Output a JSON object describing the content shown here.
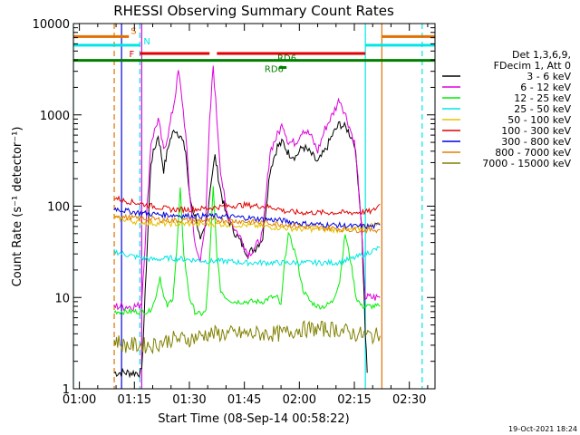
{
  "chart_data": {
    "type": "line",
    "title": "RHESSI Observing Summary Count Rates",
    "xlabel": "Start Time (08-Sep-14 00:58:22)",
    "ylabel": "Count Rate (s⁻¹ detector⁻¹)",
    "xlim": [
      "00:58:22",
      "02:37:00"
    ],
    "ylim": [
      1,
      10000
    ],
    "yscale": "log",
    "x_ticks": [
      "01:00",
      "01:15",
      "01:30",
      "01:45",
      "02:00",
      "02:15",
      "02:30"
    ],
    "y_ticks": [
      "1",
      "10",
      "100",
      "1000",
      "10000"
    ],
    "footer_date": "19-Oct-2021 18:24",
    "legend": {
      "header": [
        "Det 1,3,6,9,",
        "FDecim 1, Att 0"
      ],
      "entries": [
        {
          "label": "3 - 6 keV",
          "color": "#000000"
        },
        {
          "label": "6 - 12 keV",
          "color": "#dd00dd"
        },
        {
          "label": "12 - 25 keV",
          "color": "#00ee00"
        },
        {
          "label": "25 - 50 keV",
          "color": "#00e5e5"
        },
        {
          "label": "50 - 100 keV",
          "color": "#e5c000"
        },
        {
          "label": "100 - 300 keV",
          "color": "#e00000"
        },
        {
          "label": "300 - 800 keV",
          "color": "#0000e0"
        },
        {
          "label": "800 - 7000 keV",
          "color": "#e08000"
        },
        {
          "label": "7000 - 15000 keV",
          "color": "#808000"
        }
      ]
    },
    "flag_bars": [
      {
        "label": "S",
        "color": "#e07000",
        "level": 7200,
        "segments": [
          [
            "00:58:22",
            "01:13:30"
          ],
          [
            "02:22:30",
            "02:37:00"
          ]
        ]
      },
      {
        "label": "N",
        "color": "#00e5e5",
        "level": 5800,
        "segments": [
          [
            "00:58:22",
            "01:16:30"
          ],
          [
            "02:18:00",
            "02:37:00"
          ]
        ]
      },
      {
        "label": "F",
        "color": "#e00000",
        "level": 4700,
        "segments": [
          [
            "01:16:30",
            "01:35:30"
          ],
          [
            "01:37:30",
            "02:18:00"
          ]
        ]
      },
      {
        "label": "RD6",
        "color": "#008000",
        "level": 3950,
        "segments": [
          [
            "00:58:22",
            "02:37:00"
          ]
        ]
      },
      {
        "label": "RD6",
        "color": "#008000",
        "level": 3300,
        "segments": [
          [
            "01:54:30",
            "01:56:30"
          ]
        ]
      }
    ],
    "vertical_markers": [
      {
        "time": "00:58:22",
        "color": "#00e5e5",
        "style": "solid"
      },
      {
        "time": "01:09:30",
        "color": "#e07000",
        "style": "dashed"
      },
      {
        "time": "01:11:30",
        "color": "#0000e0",
        "style": "solid"
      },
      {
        "time": "01:16:30",
        "color": "#00e5e5",
        "style": "dashed"
      },
      {
        "time": "01:17:00",
        "color": "#dd00dd",
        "style": "solid"
      },
      {
        "time": "02:18:00",
        "color": "#00e5e5",
        "style": "solid"
      },
      {
        "time": "02:22:30",
        "color": "#e07000",
        "style": "solid"
      },
      {
        "time": "02:33:30",
        "color": "#00e5e5",
        "style": "dashed"
      }
    ],
    "series": [
      {
        "name": "3 - 6 keV",
        "color": "#000000",
        "x": [
          "01:09:30",
          "01:16:00",
          "01:17:00",
          "01:19:30",
          "01:21:30",
          "01:23:00",
          "01:24:30",
          "01:26:00",
          "01:27:30",
          "01:29:00",
          "01:30:00",
          "01:31:00",
          "01:32:00",
          "01:33:00",
          "01:34:30",
          "01:36:00",
          "01:37:00",
          "01:38:30",
          "01:40:00",
          "01:42:00",
          "01:44:00",
          "01:46:00",
          "01:48:00",
          "01:50:00",
          "01:52:00",
          "01:54:00",
          "01:55:30",
          "01:57:00",
          "01:59:00",
          "02:01:00",
          "02:03:00",
          "02:05:00",
          "02:07:00",
          "02:09:00",
          "02:11:00",
          "02:13:00",
          "02:15:00",
          "02:16:00",
          "02:17:00",
          "02:18:00",
          "02:18:30"
        ],
        "values": [
          1.5,
          1.5,
          1.5,
          300,
          600,
          250,
          500,
          700,
          600,
          400,
          130,
          90,
          70,
          40,
          60,
          200,
          350,
          150,
          80,
          55,
          40,
          30,
          35,
          45,
          250,
          450,
          500,
          380,
          350,
          450,
          380,
          300,
          400,
          600,
          800,
          700,
          500,
          200,
          60,
          4,
          1.5
        ]
      },
      {
        "name": "6 - 12 keV",
        "color": "#dd00dd",
        "x": [
          "01:09:30",
          "01:16:00",
          "01:17:00",
          "01:19:30",
          "01:21:30",
          "01:23:00",
          "01:24:30",
          "01:26:00",
          "01:27:00",
          "01:28:00",
          "01:29:00",
          "01:30:00",
          "01:31:00",
          "01:32:00",
          "01:33:00",
          "01:34:30",
          "01:35:30",
          "01:36:30",
          "01:37:30",
          "01:38:30",
          "01:40:00",
          "01:42:00",
          "01:44:00",
          "01:46:00",
          "01:48:00",
          "01:50:00",
          "01:52:00",
          "01:54:00",
          "01:55:30",
          "01:57:00",
          "01:59:00",
          "02:01:00",
          "02:03:00",
          "02:05:00",
          "02:07:00",
          "02:09:00",
          "02:11:00",
          "02:13:00",
          "02:15:00",
          "02:16:00",
          "02:17:00",
          "02:18:00",
          "02:22:00"
        ],
        "values": [
          8,
          8,
          9,
          500,
          900,
          400,
          700,
          1500,
          3000,
          1500,
          600,
          150,
          60,
          30,
          25,
          80,
          800,
          3500,
          900,
          250,
          90,
          60,
          45,
          30,
          35,
          50,
          400,
          600,
          800,
          500,
          500,
          700,
          600,
          400,
          700,
          1000,
          1500,
          900,
          500,
          200,
          50,
          10,
          10
        ]
      },
      {
        "name": "12 - 25 keV",
        "color": "#00ee00",
        "x": [
          "01:09:30",
          "01:15:00",
          "01:17:00",
          "01:19:00",
          "01:20:30",
          "01:22:00",
          "01:23:00",
          "01:24:00",
          "01:25:30",
          "01:26:30",
          "01:27:30",
          "01:28:30",
          "01:30:00",
          "01:31:30",
          "01:33:00",
          "01:34:30",
          "01:35:30",
          "01:36:30",
          "01:37:30",
          "01:38:30",
          "01:40:00",
          "01:42:00",
          "01:44:00",
          "01:46:00",
          "01:48:00",
          "01:50:00",
          "01:52:00",
          "01:54:00",
          "01:55:00",
          "01:56:00",
          "01:57:00",
          "01:59:00",
          "02:01:00",
          "02:03:00",
          "02:05:00",
          "02:07:00",
          "02:09:00",
          "02:11:00",
          "02:12:30",
          "02:14:00",
          "02:15:30",
          "02:17:00",
          "02:18:30",
          "02:22:00"
        ],
        "values": [
          7,
          7,
          7,
          7,
          9,
          17,
          10,
          8,
          10,
          30,
          150,
          30,
          10,
          7,
          6.5,
          7,
          25,
          160,
          30,
          12,
          10,
          9,
          9,
          9,
          9,
          9,
          10,
          10,
          8,
          25,
          50,
          30,
          12,
          9,
          8,
          8,
          9,
          15,
          50,
          25,
          10,
          8,
          8,
          8
        ]
      },
      {
        "name": "25 - 50 keV",
        "color": "#00e5e5",
        "x": [
          "01:09:30",
          "01:15:00",
          "01:20:00",
          "01:25:00",
          "01:30:00",
          "01:35:00",
          "01:40:00",
          "01:45:00",
          "01:50:00",
          "01:55:00",
          "02:00:00",
          "02:05:00",
          "02:10:00",
          "02:15:00",
          "02:22:00"
        ],
        "values": [
          32,
          28,
          26,
          27,
          26,
          25,
          25,
          24,
          24,
          24,
          24,
          24,
          24,
          27,
          35
        ]
      },
      {
        "name": "50 - 100 keV",
        "color": "#e5c000",
        "x": [
          "01:09:30",
          "01:15:00",
          "01:20:00",
          "01:25:00",
          "01:30:00",
          "01:35:00",
          "01:40:00",
          "01:45:00",
          "01:50:00",
          "01:55:00",
          "02:00:00",
          "02:05:00",
          "02:10:00",
          "02:15:00",
          "02:22:00"
        ],
        "values": [
          75,
          68,
          65,
          64,
          64,
          64,
          63,
          62,
          60,
          58,
          56,
          56,
          55,
          55,
          65
        ]
      },
      {
        "name": "100 - 300 keV",
        "color": "#e00000",
        "x": [
          "01:09:30",
          "01:12:00",
          "01:15:00",
          "01:20:00",
          "01:25:00",
          "01:30:00",
          "01:35:00",
          "01:40:00",
          "01:45:00",
          "01:50:00",
          "01:54:00",
          "01:56:00",
          "02:00:00",
          "02:05:00",
          "02:10:00",
          "02:15:00",
          "02:20:00",
          "02:22:00"
        ],
        "values": [
          125,
          115,
          110,
          100,
          92,
          92,
          95,
          100,
          103,
          100,
          95,
          88,
          85,
          85,
          85,
          85,
          88,
          105
        ]
      },
      {
        "name": "300 - 800 keV",
        "color": "#0000e0",
        "x": [
          "01:09:30",
          "01:12:00",
          "01:15:00",
          "01:20:00",
          "01:25:00",
          "01:30:00",
          "01:35:00",
          "01:40:00",
          "01:45:00",
          "01:50:00",
          "01:55:00",
          "02:00:00",
          "02:05:00",
          "02:10:00",
          "02:15:00",
          "02:20:00",
          "02:22:00"
        ],
        "values": [
          95,
          90,
          86,
          82,
          80,
          78,
          78,
          77,
          75,
          72,
          70,
          65,
          63,
          62,
          60,
          60,
          62
        ]
      },
      {
        "name": "800 - 7000 keV",
        "color": "#e08000",
        "x": [
          "01:09:30",
          "01:12:00",
          "01:15:00",
          "01:20:00",
          "01:25:00",
          "01:30:00",
          "01:35:00",
          "01:40:00",
          "01:45:00",
          "01:50:00",
          "01:55:00",
          "02:00:00",
          "02:05:00",
          "02:10:00",
          "02:15:00",
          "02:20:00",
          "02:22:00"
        ],
        "values": [
          80,
          76,
          74,
          72,
          70,
          70,
          70,
          70,
          68,
          66,
          64,
          60,
          58,
          57,
          55,
          55,
          55
        ]
      },
      {
        "name": "7000 - 15000 keV",
        "color": "#808000",
        "x": [
          "01:09:30",
          "01:12:00",
          "01:15:00",
          "01:20:00",
          "01:25:00",
          "01:30:00",
          "01:35:00",
          "01:40:00",
          "01:45:00",
          "01:50:00",
          "01:55:00",
          "02:00:00",
          "02:05:00",
          "02:10:00",
          "02:15:00",
          "02:20:00",
          "02:22:00"
        ],
        "values": [
          3.5,
          3,
          3,
          3,
          3.5,
          3.5,
          4,
          4,
          4,
          4,
          4,
          4.5,
          4.5,
          4.5,
          4,
          3.8,
          3.8
        ]
      }
    ]
  }
}
